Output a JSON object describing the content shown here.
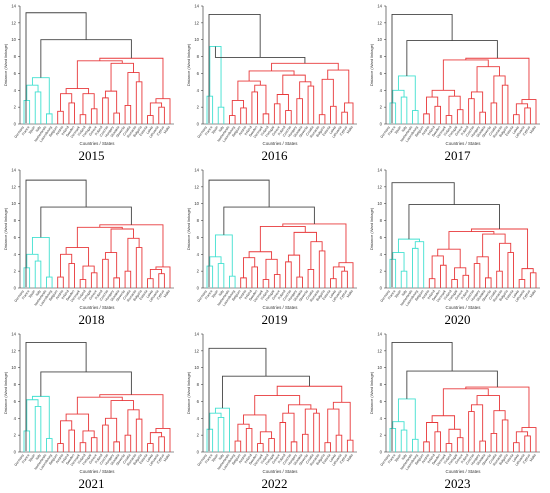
{
  "axis": {
    "ylabel": "Distance (Ward linkage)",
    "xlabel": "Countries / States",
    "ylim": [
      0,
      14
    ],
    "yticks": [
      0,
      2,
      4,
      6,
      8,
      10,
      12,
      14
    ]
  },
  "colors": {
    "cluster_a": "#40e0d0",
    "cluster_b": "#e8383a",
    "root": "#444444",
    "axis": "#222222"
  },
  "chart_data": [
    {
      "type": "dendrogram",
      "year": "2015",
      "ylabel": "Distance (Ward linkage)",
      "xlabel": "Countries / States",
      "ylim": [
        0,
        14
      ],
      "root_height": 13.2,
      "join_height": 10.0,
      "cyan_height": 5.5,
      "red_height": 7.8,
      "cyan_leaves": [
        "Germany",
        "France",
        "Spain",
        "Italy",
        "Netherlands",
        "Luxembourg"
      ],
      "cyan_joins": [
        2.8,
        3.8,
        1.2,
        1.5
      ],
      "red_leaves": [
        "Belgium",
        "Austria",
        "Ireland",
        "Sweden",
        "Denmark",
        "Finland",
        "Portugal",
        "Greece",
        "Poland",
        "Czechia",
        "Hungary",
        "Slovakia",
        "Slovenia",
        "Croatia",
        "Romania",
        "Bulgaria",
        "Estonia",
        "Latvia",
        "Lithuania",
        "Cyprus",
        "Malta"
      ],
      "red_joins": [
        1.5,
        2.5,
        1.1,
        1.8,
        3.1,
        1.3,
        2.2,
        5.0,
        1.0,
        2.0,
        1.4,
        3.6,
        1.2,
        2.6,
        1.6,
        4.2,
        1.1,
        2.3,
        3.0,
        6.5
      ]
    },
    {
      "type": "dendrogram",
      "year": "2016",
      "ylabel": "Distance (Ward linkage)",
      "xlabel": "Countries / States",
      "ylim": [
        0,
        14
      ],
      "root_height": 13.0,
      "join_height": 7.9,
      "cyan_height": 9.2,
      "red_height": 7.2,
      "cyan_leaves": [
        "Germany",
        "France",
        "Spain",
        "Italy"
      ],
      "cyan_joins": [
        3.3,
        2.0
      ],
      "red_leaves": [
        "Netherlands",
        "Luxembourg",
        "Belgium",
        "Austria",
        "Ireland",
        "Sweden",
        "Denmark",
        "Finland",
        "Portugal",
        "Greece",
        "Poland",
        "Czechia",
        "Hungary",
        "Slovakia",
        "Slovenia",
        "Croatia",
        "Romania",
        "Bulgaria",
        "Estonia",
        "Latvia",
        "Lithuania",
        "Cyprus",
        "Malta"
      ],
      "red_joins": [
        1.0,
        1.9,
        3.8,
        1.2,
        2.4,
        1.6,
        3.0,
        4.5,
        1.1,
        2.1,
        1.4,
        2.8,
        1.0,
        2.2,
        3.4,
        5.3,
        1.3,
        2.0,
        3.2,
        1.5,
        2.7,
        6.8
      ]
    },
    {
      "type": "dendrogram",
      "year": "2017",
      "ylabel": "Distance (Ward linkage)",
      "xlabel": "Countries / States",
      "ylim": [
        0,
        14
      ],
      "root_height": 13.0,
      "join_height": 9.9,
      "cyan_height": 5.7,
      "red_height": 7.8,
      "cyan_leaves": [
        "Germany",
        "France",
        "Spain",
        "Italy",
        "Netherlands",
        "Luxembourg"
      ],
      "cyan_joins": [
        2.5,
        3.2,
        1.6,
        2.0
      ],
      "red_leaves": [
        "Belgium",
        "Austria",
        "Ireland",
        "Sweden",
        "Denmark",
        "Finland",
        "Portugal",
        "Greece",
        "Poland",
        "Czechia",
        "Hungary",
        "Slovakia",
        "Slovenia",
        "Croatia",
        "Romania",
        "Bulgaria",
        "Estonia",
        "Latvia",
        "Lithuania",
        "Cyprus",
        "Malta"
      ],
      "red_joins": [
        1.2,
        2.1,
        1.0,
        1.7,
        3.0,
        1.4,
        2.5,
        4.6,
        1.1,
        1.9,
        1.3,
        3.3,
        1.2,
        2.4,
        1.5,
        4.0,
        1.0,
        2.2,
        3.5,
        6.2
      ]
    },
    {
      "type": "dendrogram",
      "year": "2018",
      "ylabel": "Distance (Ward linkage)",
      "xlabel": "Countries / States",
      "ylim": [
        0,
        14
      ],
      "root_height": 12.8,
      "join_height": 9.6,
      "cyan_height": 6.0,
      "red_height": 7.5,
      "cyan_leaves": [
        "Germany",
        "France",
        "Spain",
        "Italy",
        "Netherlands",
        "Luxembourg"
      ],
      "cyan_joins": [
        2.4,
        3.2,
        1.3,
        1.8
      ],
      "red_leaves": [
        "Belgium",
        "Austria",
        "Ireland",
        "Sweden",
        "Denmark",
        "Finland",
        "Portugal",
        "Greece",
        "Poland",
        "Czechia",
        "Hungary",
        "Slovakia",
        "Slovenia",
        "Croatia",
        "Romania",
        "Bulgaria",
        "Estonia",
        "Latvia",
        "Lithuania",
        "Cyprus",
        "Malta"
      ],
      "red_joins": [
        1.3,
        2.9,
        1.0,
        1.8,
        3.4,
        1.2,
        2.0,
        4.8,
        1.1,
        1.7,
        1.4,
        2.6,
        1.0,
        2.3,
        1.5,
        4.1,
        1.2,
        2.5,
        3.6,
        6.0
      ]
    },
    {
      "type": "dendrogram",
      "year": "2019",
      "ylabel": "Distance (Ward linkage)",
      "xlabel": "Countries / States",
      "ylim": [
        0,
        14
      ],
      "root_height": 12.8,
      "join_height": 9.6,
      "cyan_height": 6.3,
      "red_height": 7.6,
      "cyan_leaves": [
        "Germany",
        "France",
        "Spain",
        "Italy",
        "Netherlands",
        "Luxembourg"
      ],
      "cyan_joins": [
        2.6,
        2.9,
        1.4,
        1.9
      ],
      "red_leaves": [
        "Belgium",
        "Austria",
        "Ireland",
        "Sweden",
        "Denmark",
        "Finland",
        "Portugal",
        "Greece",
        "Poland",
        "Czechia",
        "Hungary",
        "Slovakia",
        "Slovenia",
        "Croatia",
        "Romania",
        "Bulgaria",
        "Estonia",
        "Latvia",
        "Lithuania",
        "Cyprus",
        "Malta"
      ],
      "red_joins": [
        1.2,
        2.5,
        1.0,
        1.6,
        3.1,
        1.3,
        2.2,
        4.4,
        1.1,
        2.0,
        1.5,
        3.4,
        1.1,
        2.1,
        1.4,
        4.3,
        1.0,
        2.4,
        3.3,
        6.4
      ]
    },
    {
      "type": "dendrogram",
      "year": "2020",
      "ylabel": "Distance (Ward linkage)",
      "xlabel": "Countries / States",
      "ylim": [
        0,
        14
      ],
      "root_height": 12.5,
      "join_height": 9.9,
      "cyan_height": 5.8,
      "red_height": 7.0,
      "cyan_leaves": [
        "Germany",
        "France",
        "Spain",
        "Italy",
        "Netherlands",
        "Luxembourg",
        "Belgium"
      ],
      "cyan_joins": [
        3.4,
        2.0,
        4.7,
        1.5,
        3.0
      ],
      "red_leaves": [
        "Austria",
        "Ireland",
        "Sweden",
        "Denmark",
        "Finland",
        "Portugal",
        "Greece",
        "Poland",
        "Czechia",
        "Hungary",
        "Slovakia",
        "Slovenia",
        "Croatia",
        "Romania",
        "Bulgaria",
        "Estonia",
        "Latvia",
        "Lithuania",
        "Cyprus",
        "Malta"
      ],
      "red_joins": [
        1.1,
        2.7,
        1.0,
        1.5,
        2.9,
        1.2,
        2.0,
        4.2,
        1.0,
        1.8,
        1.3,
        2.4,
        1.1,
        2.2,
        1.4,
        3.8,
        1.2,
        2.6,
        4.6
      ]
    },
    {
      "type": "dendrogram",
      "year": "2021",
      "ylabel": "Distance (Ward linkage)",
      "xlabel": "Countries / States",
      "ylim": [
        0,
        14
      ],
      "root_height": 13.0,
      "join_height": 9.5,
      "cyan_height": 6.6,
      "red_height": 6.8,
      "cyan_leaves": [
        "Germany",
        "France",
        "Spain",
        "Italy",
        "Netherlands",
        "Luxembourg"
      ],
      "cyan_joins": [
        2.5,
        5.4,
        1.6,
        2.1
      ],
      "red_leaves": [
        "Belgium",
        "Austria",
        "Ireland",
        "Sweden",
        "Denmark",
        "Finland",
        "Portugal",
        "Greece",
        "Poland",
        "Czechia",
        "Hungary",
        "Slovakia",
        "Slovenia",
        "Croatia",
        "Romania",
        "Bulgaria",
        "Estonia",
        "Latvia",
        "Lithuania",
        "Cyprus",
        "Malta"
      ],
      "red_joins": [
        1.0,
        2.6,
        1.1,
        1.7,
        3.2,
        1.2,
        2.0,
        3.9,
        1.0,
        1.8,
        1.4,
        2.5,
        1.1,
        2.3,
        1.5,
        3.6,
        1.2,
        2.4,
        3.0,
        5.2
      ]
    },
    {
      "type": "dendrogram",
      "year": "2022",
      "ylabel": "Distance (Ward linkage)",
      "xlabel": "Countries / States",
      "ylim": [
        0,
        14
      ],
      "root_height": 12.3,
      "join_height": 9.0,
      "cyan_height": 5.2,
      "red_height": 7.8,
      "cyan_leaves": [
        "Germany",
        "France",
        "Spain",
        "Italy",
        "Netherlands"
      ],
      "cyan_joins": [
        2.7,
        4.1,
        1.8
      ],
      "red_leaves": [
        "Luxembourg",
        "Belgium",
        "Austria",
        "Ireland",
        "Sweden",
        "Denmark",
        "Finland",
        "Portugal",
        "Greece",
        "Poland",
        "Czechia",
        "Hungary",
        "Slovakia",
        "Slovenia",
        "Croatia",
        "Romania",
        "Bulgaria",
        "Estonia",
        "Latvia",
        "Lithuania",
        "Cyprus",
        "Malta"
      ],
      "red_joins": [
        1.3,
        2.8,
        1.0,
        1.6,
        3.5,
        1.2,
        2.1,
        4.6,
        1.1,
        2.0,
        1.4,
        3.0,
        1.0,
        2.3,
        1.5,
        5.1,
        1.2,
        2.5,
        3.3,
        4.0,
        6.4
      ]
    },
    {
      "type": "dendrogram",
      "year": "2023",
      "ylabel": "Distance (Ward linkage)",
      "xlabel": "Countries / States",
      "ylim": [
        0,
        14
      ],
      "root_height": 13.0,
      "join_height": 9.6,
      "cyan_height": 6.3,
      "red_height": 7.7,
      "cyan_leaves": [
        "Germany",
        "France",
        "Spain",
        "Italy",
        "Netherlands",
        "Luxembourg"
      ],
      "cyan_joins": [
        2.8,
        2.6,
        1.5,
        2.0
      ],
      "red_leaves": [
        "Belgium",
        "Austria",
        "Ireland",
        "Sweden",
        "Denmark",
        "Finland",
        "Portugal",
        "Greece",
        "Poland",
        "Czechia",
        "Hungary",
        "Slovakia",
        "Slovenia",
        "Croatia",
        "Romania",
        "Bulgaria",
        "Estonia",
        "Latvia",
        "Lithuania",
        "Cyprus",
        "Malta"
      ],
      "red_joins": [
        1.2,
        2.4,
        1.0,
        1.7,
        4.8,
        1.3,
        2.2,
        3.8,
        1.1,
        1.9,
        1.4,
        2.7,
        1.0,
        2.1,
        1.5,
        3.5,
        1.1,
        2.3,
        3.1,
        6.0
      ]
    }
  ]
}
